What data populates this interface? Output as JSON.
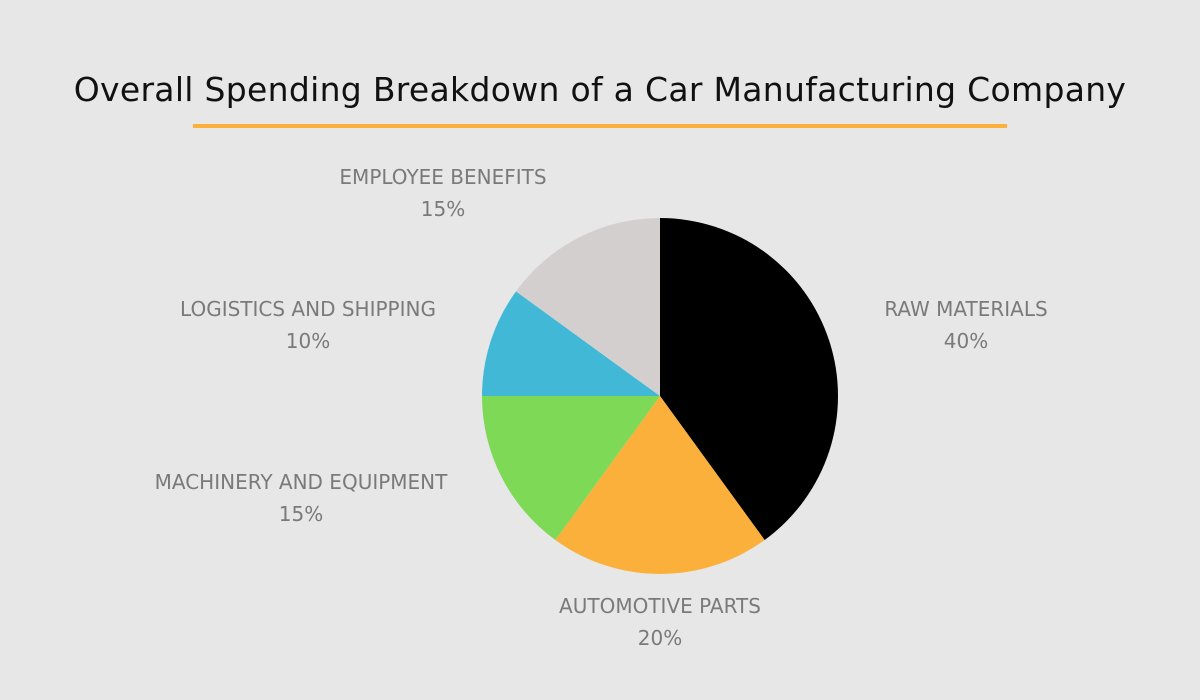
{
  "chart_data": {
    "type": "pie",
    "title": "Overall Spending Breakdown of a Car Manufacturing Company",
    "accent_color": "#fbb03b",
    "start_angle": "top",
    "direction": "clockwise",
    "slices": [
      {
        "label": "RAW MATERIALS",
        "value": 40,
        "display": "40%",
        "color": "#000000"
      },
      {
        "label": "AUTOMOTIVE PARTS",
        "value": 20,
        "display": "20%",
        "color": "#fbb03b"
      },
      {
        "label": "MACHINERY AND EQUIPMENT",
        "value": 15,
        "display": "15%",
        "color": "#7ed957"
      },
      {
        "label": "LOGISTICS AND SHIPPING",
        "value": 10,
        "display": "10%",
        "color": "#41b8d6"
      },
      {
        "label": "EMPLOYEE BENEFITS",
        "value": 15,
        "display": "15%",
        "color": "#d3cfcf"
      }
    ]
  }
}
